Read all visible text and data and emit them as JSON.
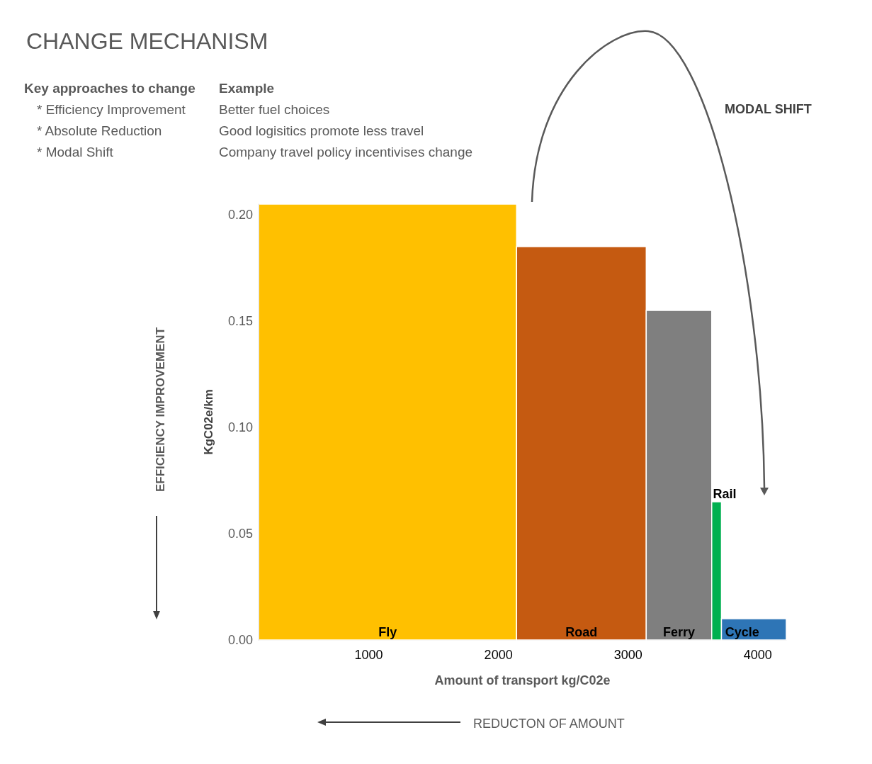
{
  "chart_data": {
    "type": "histogram",
    "title": "CHANGE MECHANISM",
    "xlabel": "Amount of transport kg/C02e",
    "ylabel": "KgC02e/km",
    "bins": [
      150,
      2140,
      3140,
      3645,
      3720,
      4220
    ],
    "values": [
      0.205,
      0.185,
      0.155,
      0.065,
      0.01
    ],
    "colors": [
      "#ffc000",
      "#c55a11",
      "#7f7f7f",
      "#00b050",
      "#2e75b6"
    ],
    "xlim": [
      150,
      4220
    ],
    "xticks": [
      1000,
      2000,
      3000,
      4000
    ],
    "ylim": [
      0,
      0.205
    ],
    "yticks": [
      {
        "value": 0,
        "label": "0.00"
      },
      {
        "value": 0.05,
        "label": "0.05"
      },
      {
        "value": 0.1,
        "label": "0.10"
      },
      {
        "value": 0.15,
        "label": "0.15"
      },
      {
        "value": 0.2,
        "label": "0.20"
      }
    ],
    "grid": false,
    "annotations": [
      "Key approaches to change",
      "Example",
      "* Efficiency  Improvement",
      "Better fuel choices",
      "* Absolute Reduction",
      "Good logisitics promote less travel",
      "* Modal Shift",
      "Company travel policy incentivises change",
      "MODAL SHIFT",
      "EFFICIENCY IMPROVEMENT",
      "REDUCTON OF AMOUNT",
      {
        "text": "Fly",
        "x": 1145,
        "y": 0
      },
      {
        "text": "Road",
        "x": 2640,
        "y": 0
      },
      {
        "text": "Ferry",
        "x": 3392,
        "y": 0
      },
      {
        "text": "Rail",
        "x": 3655,
        "y": 0.065
      },
      {
        "text": "Cycle",
        "x": 3880,
        "y": 0
      }
    ]
  }
}
